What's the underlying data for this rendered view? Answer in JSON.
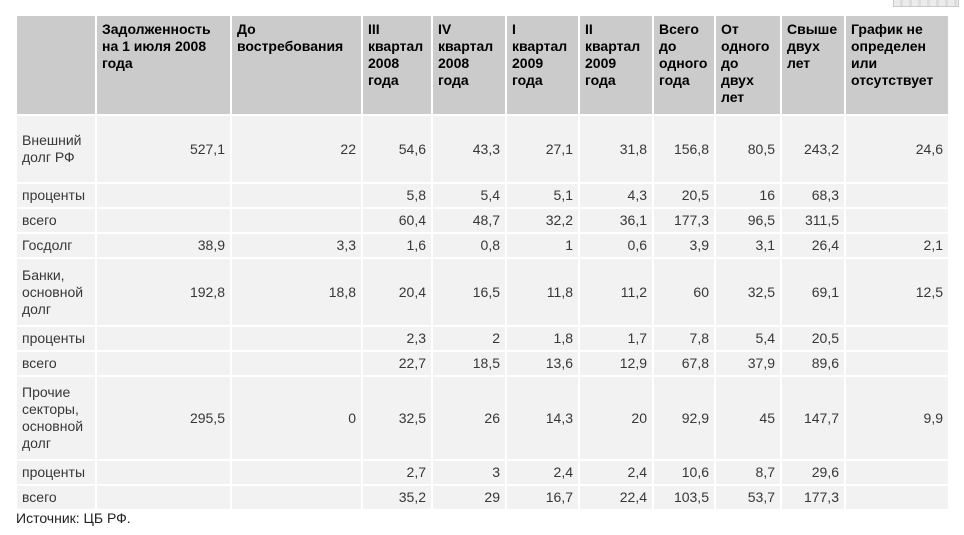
{
  "page": {
    "source_note": "Источник: ЦБ РФ."
  },
  "decoration": {
    "top_right_fragment": "cropped-ui-sliver"
  },
  "colors": {
    "header_bg": "#cbcbcb",
    "cell_bg": "#f2f2f2",
    "grid_gap": "#ffffff",
    "text": "#373737"
  },
  "table": {
    "columns": [
      "",
      "Задолженность на 1 июля 2008 года",
      "До востребования",
      "III квартал 2008 года",
      "IV квартал 2008 года",
      "I квартал 2009 года",
      "II квартал 2009 года",
      "Всего до одного года",
      "От одного до двух лет",
      "Свыше двух лет",
      "График не определен или отсутствует"
    ],
    "rows": [
      {
        "label": "Внешний долг РФ",
        "values": [
          "527,1",
          "22",
          "54,6",
          "43,3",
          "27,1",
          "31,8",
          "156,8",
          "80,5",
          "243,2",
          "24,6"
        ]
      },
      {
        "label": "проценты",
        "values": [
          "",
          "",
          "5,8",
          "5,4",
          "5,1",
          "4,3",
          "20,5",
          "16",
          "68,3",
          ""
        ]
      },
      {
        "label": "всего",
        "values": [
          "",
          "",
          "60,4",
          "48,7",
          "32,2",
          "36,1",
          "177,3",
          "96,5",
          "311,5",
          ""
        ]
      },
      {
        "label": "Госдолг",
        "values": [
          "38,9",
          "3,3",
          "1,6",
          "0,8",
          "1",
          "0,6",
          "3,9",
          "3,1",
          "26,4",
          "2,1"
        ]
      },
      {
        "label": "Банки, основной долг",
        "values": [
          "192,8",
          "18,8",
          "20,4",
          "16,5",
          "11,8",
          "11,2",
          "60",
          "32,5",
          "69,1",
          "12,5"
        ]
      },
      {
        "label": "проценты",
        "values": [
          "",
          "",
          "2,3",
          "2",
          "1,8",
          "1,7",
          "7,8",
          "5,4",
          "20,5",
          ""
        ]
      },
      {
        "label": "всего",
        "values": [
          "",
          "",
          "22,7",
          "18,5",
          "13,6",
          "12,9",
          "67,8",
          "37,9",
          "89,6",
          ""
        ]
      },
      {
        "label": "Прочие секторы, основной долг",
        "values": [
          "295,5",
          "0",
          "32,5",
          "26",
          "14,3",
          "20",
          "92,9",
          "45",
          "147,7",
          "9,9"
        ]
      },
      {
        "label": "проценты",
        "values": [
          "",
          "",
          "2,7",
          "3",
          "2,4",
          "2,4",
          "10,6",
          "8,7",
          "29,6",
          ""
        ]
      },
      {
        "label": "всего",
        "values": [
          "",
          "",
          "35,2",
          "29",
          "16,7",
          "22,4",
          "103,5",
          "53,7",
          "177,3",
          ""
        ]
      }
    ]
  }
}
